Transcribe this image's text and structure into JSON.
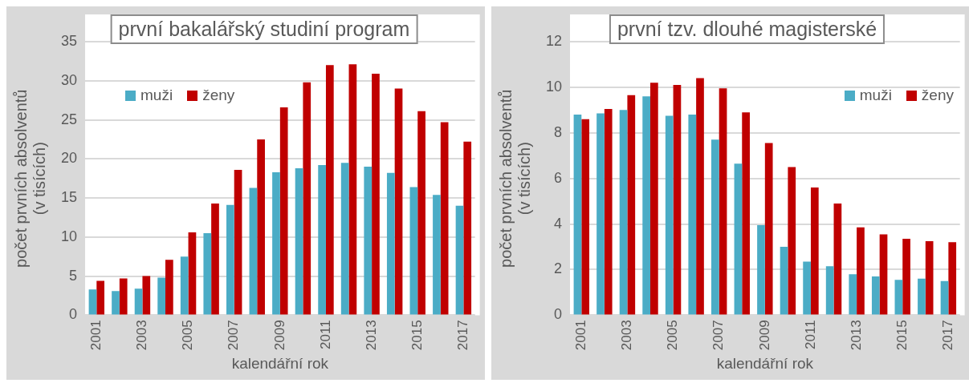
{
  "chart_data": [
    {
      "type": "bar",
      "title": "první bakalářský studiní program",
      "xlabel": "kalendářní rok",
      "ylabel": "počet prvních absolventů\n(v tisících)",
      "categories": [
        "2001",
        null,
        "2003",
        null,
        "2005",
        null,
        "2007",
        null,
        "2009",
        null,
        "2011",
        null,
        "2013",
        null,
        "2015",
        null,
        "2017"
      ],
      "ylim": [
        0,
        35
      ],
      "yticks": [
        0,
        5,
        10,
        15,
        20,
        25,
        30,
        35
      ],
      "grid": "y",
      "legend": "top left",
      "series": [
        {
          "name": "muži",
          "color": "#4bacc6",
          "values": [
            3.3,
            3.1,
            3.4,
            4.8,
            7.5,
            10.5,
            14.1,
            16.3,
            18.3,
            18.8,
            19.2,
            19.5,
            19.0,
            18.2,
            16.4,
            15.4,
            14.0
          ]
        },
        {
          "name": "ženy",
          "color": "#c00000",
          "values": [
            4.4,
            4.7,
            5.0,
            7.1,
            10.6,
            14.3,
            18.6,
            22.5,
            26.6,
            29.8,
            32.0,
            32.1,
            30.9,
            29.0,
            26.1,
            24.7,
            22.2
          ]
        }
      ]
    },
    {
      "type": "bar",
      "title": "první tzv. dlouhé magisterské",
      "xlabel": "kalendářní rok",
      "ylabel": "počet prvních absolventů\n(v tisících)",
      "categories": [
        "2001",
        null,
        "2003",
        null,
        "2005",
        null,
        "2007",
        null,
        "2009",
        null,
        "2011",
        null,
        "2013",
        null,
        "2015",
        null,
        "2017"
      ],
      "ylim": [
        0,
        12
      ],
      "yticks": [
        0,
        2,
        4,
        6,
        8,
        10,
        12
      ],
      "grid": "y",
      "legend": "top right",
      "series": [
        {
          "name": "muži",
          "color": "#4bacc6",
          "values": [
            8.8,
            8.85,
            9.0,
            9.6,
            8.75,
            8.8,
            7.7,
            6.65,
            3.95,
            3.0,
            2.35,
            2.15,
            1.8,
            1.7,
            1.55,
            1.6,
            1.5
          ]
        },
        {
          "name": "ženy",
          "color": "#c00000",
          "values": [
            8.6,
            9.05,
            9.65,
            10.2,
            10.1,
            10.4,
            9.95,
            8.9,
            7.55,
            6.5,
            5.6,
            4.9,
            3.85,
            3.55,
            3.35,
            3.25,
            3.2
          ]
        }
      ]
    }
  ]
}
